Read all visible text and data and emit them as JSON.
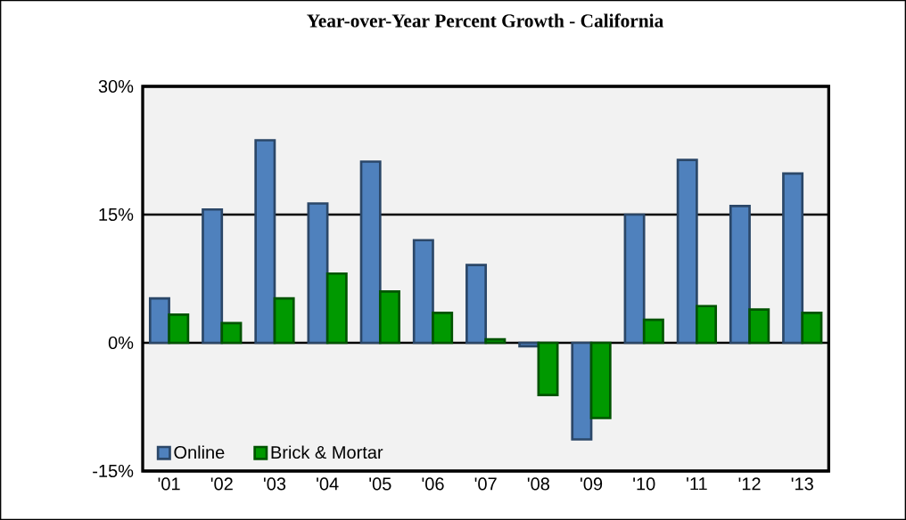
{
  "chart_data": {
    "type": "bar",
    "title": "Year-over-Year Percent Growth - California",
    "categories": [
      "'01",
      "'02",
      "'03",
      "'04",
      "'05",
      "'06",
      "'07",
      "'08",
      "'09",
      "'10",
      "'11",
      "'12",
      "'13"
    ],
    "series": [
      {
        "name": "Online",
        "color": "#4f81bd",
        "values": [
          5.2,
          15.6,
          23.7,
          16.3,
          21.2,
          12.0,
          9.1,
          -0.4,
          -11.3,
          15.0,
          21.4,
          16.0,
          19.8
        ]
      },
      {
        "name": "Brick & Mortar",
        "color": "#009900",
        "values": [
          3.3,
          2.3,
          5.2,
          8.1,
          6.0,
          3.5,
          0.4,
          -6.1,
          -8.8,
          2.7,
          4.3,
          3.9,
          3.5
        ]
      }
    ],
    "ylim": [
      -15,
      30
    ],
    "yticks": [
      {
        "value": -15,
        "label": "-15%"
      },
      {
        "value": 0,
        "label": "0%"
      },
      {
        "value": 15,
        "label": "15%"
      },
      {
        "value": 30,
        "label": "30%"
      }
    ],
    "grid": "y",
    "legend": "bottom left"
  }
}
